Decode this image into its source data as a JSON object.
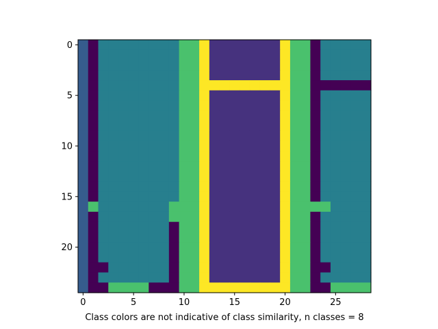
{
  "chart_data": {
    "type": "heatmap",
    "title": "",
    "xlabel": "Class colors are not indicative of class similarity, n classes = 8",
    "ylabel": "",
    "n_classes": 8,
    "rows": 25,
    "cols": 29,
    "colormap": "viridis",
    "class_colors": [
      "#440154",
      "#46327e",
      "#365c8d",
      "#277f8e",
      "#1fa187",
      "#4ac16d",
      "#a0da39",
      "#fde725"
    ],
    "x_ticks": [
      0,
      5,
      10,
      15,
      20,
      25
    ],
    "y_ticks": [
      0,
      5,
      10,
      15,
      20
    ],
    "xlim": [
      -0.5,
      28.5
    ],
    "ylim": [
      24.5,
      -0.5
    ],
    "grid": false,
    "matrix": [
      [
        2,
        0,
        3,
        3,
        3,
        3,
        3,
        3,
        3,
        3,
        5,
        5,
        7,
        1,
        1,
        1,
        1,
        1,
        1,
        1,
        7,
        5,
        5,
        0,
        3,
        3,
        3,
        3,
        3
      ],
      [
        2,
        0,
        3,
        3,
        3,
        3,
        3,
        3,
        3,
        3,
        5,
        5,
        7,
        1,
        1,
        1,
        1,
        1,
        1,
        1,
        7,
        5,
        5,
        0,
        3,
        3,
        3,
        3,
        3
      ],
      [
        2,
        0,
        3,
        3,
        3,
        3,
        3,
        3,
        3,
        3,
        5,
        5,
        7,
        1,
        1,
        1,
        1,
        1,
        1,
        1,
        7,
        5,
        5,
        0,
        3,
        3,
        3,
        3,
        3
      ],
      [
        2,
        0,
        3,
        3,
        3,
        3,
        3,
        3,
        3,
        3,
        5,
        5,
        7,
        1,
        1,
        1,
        1,
        1,
        1,
        1,
        7,
        5,
        5,
        0,
        3,
        3,
        3,
        3,
        3
      ],
      [
        2,
        0,
        3,
        3,
        3,
        3,
        3,
        3,
        3,
        3,
        5,
        5,
        7,
        7,
        7,
        7,
        7,
        7,
        7,
        7,
        7,
        5,
        5,
        0,
        0,
        0,
        0,
        0,
        0
      ],
      [
        2,
        0,
        3,
        3,
        3,
        3,
        3,
        3,
        3,
        3,
        5,
        5,
        7,
        1,
        1,
        1,
        1,
        1,
        1,
        1,
        7,
        5,
        5,
        0,
        3,
        3,
        3,
        3,
        3
      ],
      [
        2,
        0,
        3,
        3,
        3,
        3,
        3,
        3,
        3,
        3,
        5,
        5,
        7,
        1,
        1,
        1,
        1,
        1,
        1,
        1,
        7,
        5,
        5,
        0,
        3,
        3,
        3,
        3,
        3
      ],
      [
        2,
        0,
        3,
        3,
        3,
        3,
        3,
        3,
        3,
        3,
        5,
        5,
        7,
        1,
        1,
        1,
        1,
        1,
        1,
        1,
        7,
        5,
        5,
        0,
        3,
        3,
        3,
        3,
        3
      ],
      [
        2,
        0,
        3,
        3,
        3,
        3,
        3,
        3,
        3,
        3,
        5,
        5,
        7,
        1,
        1,
        1,
        1,
        1,
        1,
        1,
        7,
        5,
        5,
        0,
        3,
        3,
        3,
        3,
        3
      ],
      [
        2,
        0,
        3,
        3,
        3,
        3,
        3,
        3,
        3,
        3,
        5,
        5,
        7,
        1,
        1,
        1,
        1,
        1,
        1,
        1,
        7,
        5,
        5,
        0,
        3,
        3,
        3,
        3,
        3
      ],
      [
        2,
        0,
        3,
        3,
        3,
        3,
        3,
        3,
        3,
        3,
        5,
        5,
        7,
        1,
        1,
        1,
        1,
        1,
        1,
        1,
        7,
        5,
        5,
        0,
        3,
        3,
        3,
        3,
        3
      ],
      [
        2,
        0,
        3,
        3,
        3,
        3,
        3,
        3,
        3,
        3,
        5,
        5,
        7,
        1,
        1,
        1,
        1,
        1,
        1,
        1,
        7,
        5,
        5,
        0,
        3,
        3,
        3,
        3,
        3
      ],
      [
        2,
        0,
        3,
        3,
        3,
        3,
        3,
        3,
        3,
        3,
        5,
        5,
        7,
        1,
        1,
        1,
        1,
        1,
        1,
        1,
        7,
        5,
        5,
        0,
        3,
        3,
        3,
        3,
        3
      ],
      [
        2,
        0,
        3,
        3,
        3,
        3,
        3,
        3,
        3,
        3,
        5,
        5,
        7,
        1,
        1,
        1,
        1,
        1,
        1,
        1,
        7,
        5,
        5,
        0,
        3,
        3,
        3,
        3,
        3
      ],
      [
        2,
        0,
        3,
        3,
        3,
        3,
        3,
        3,
        3,
        3,
        5,
        5,
        7,
        1,
        1,
        1,
        1,
        1,
        1,
        1,
        7,
        5,
        5,
        0,
        3,
        3,
        3,
        3,
        3
      ],
      [
        2,
        0,
        3,
        3,
        3,
        3,
        3,
        3,
        3,
        3,
        5,
        5,
        7,
        1,
        1,
        1,
        1,
        1,
        1,
        1,
        7,
        5,
        5,
        0,
        3,
        3,
        3,
        3,
        3
      ],
      [
        2,
        5,
        3,
        3,
        3,
        3,
        3,
        3,
        3,
        5,
        5,
        5,
        7,
        1,
        1,
        1,
        1,
        1,
        1,
        1,
        7,
        5,
        5,
        5,
        5,
        3,
        3,
        3,
        3
      ],
      [
        2,
        0,
        3,
        3,
        3,
        3,
        3,
        3,
        3,
        5,
        5,
        5,
        7,
        1,
        1,
        1,
        1,
        1,
        1,
        1,
        7,
        5,
        5,
        0,
        3,
        3,
        3,
        3,
        3
      ],
      [
        2,
        0,
        3,
        3,
        3,
        3,
        3,
        3,
        3,
        0,
        5,
        5,
        7,
        1,
        1,
        1,
        1,
        1,
        1,
        1,
        7,
        5,
        5,
        0,
        3,
        3,
        3,
        3,
        3
      ],
      [
        2,
        0,
        3,
        3,
        3,
        3,
        3,
        3,
        3,
        0,
        5,
        5,
        7,
        1,
        1,
        1,
        1,
        1,
        1,
        1,
        7,
        5,
        5,
        0,
        3,
        3,
        3,
        3,
        3
      ],
      [
        2,
        0,
        3,
        3,
        3,
        3,
        3,
        3,
        3,
        0,
        5,
        5,
        7,
        1,
        1,
        1,
        1,
        1,
        1,
        1,
        7,
        5,
        5,
        0,
        3,
        3,
        3,
        3,
        3
      ],
      [
        2,
        0,
        3,
        3,
        3,
        3,
        3,
        3,
        3,
        0,
        5,
        5,
        7,
        1,
        1,
        1,
        1,
        1,
        1,
        1,
        7,
        5,
        5,
        0,
        3,
        3,
        3,
        3,
        3
      ],
      [
        2,
        0,
        0,
        3,
        3,
        3,
        3,
        3,
        3,
        0,
        5,
        5,
        7,
        1,
        1,
        1,
        1,
        1,
        1,
        1,
        7,
        5,
        5,
        0,
        0,
        3,
        3,
        3,
        3
      ],
      [
        2,
        0,
        3,
        3,
        3,
        3,
        3,
        3,
        3,
        0,
        5,
        5,
        7,
        1,
        1,
        1,
        1,
        1,
        1,
        1,
        7,
        5,
        5,
        0,
        3,
        3,
        3,
        3,
        3
      ],
      [
        2,
        0,
        0,
        5,
        5,
        5,
        5,
        0,
        0,
        0,
        5,
        5,
        7,
        7,
        7,
        7,
        7,
        7,
        7,
        7,
        7,
        5,
        5,
        0,
        0,
        5,
        5,
        5,
        5
      ]
    ]
  }
}
